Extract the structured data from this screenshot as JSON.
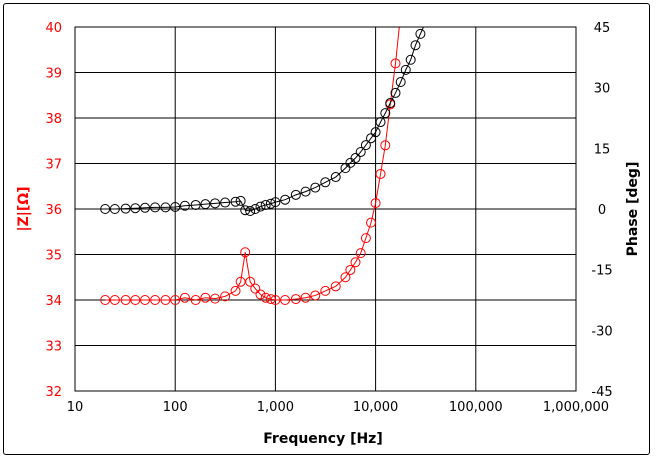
{
  "chart_data": {
    "type": "line",
    "xlabel": "Frequency [Hz]",
    "ylabel_left": "|Z|[Ω]",
    "ylabel_right": "Phase [deg]",
    "x_scale": "log",
    "xlim": [
      10,
      1000000
    ],
    "ylim_left": [
      32,
      40
    ],
    "ylim_right": [
      -45,
      45
    ],
    "grid": true,
    "x_ticks": [
      "10",
      "100",
      "1,000",
      "10,000",
      "100,000",
      "1,000,000"
    ],
    "y_left_ticks": [
      "32",
      "33",
      "34",
      "35",
      "36",
      "37",
      "38",
      "39",
      "40"
    ],
    "y_right_ticks": [
      "-45",
      "-30",
      "-15",
      "0",
      "15",
      "30",
      "45"
    ],
    "colors": {
      "impedance": "#ff0000",
      "phase": "#000000",
      "left_axis_text": "#ff0000"
    },
    "marker": "open-circle",
    "series": [
      {
        "axis": "left",
        "color": "#ff0000",
        "x": [
          20,
          25,
          32,
          40,
          50,
          63,
          80,
          100,
          125,
          160,
          200,
          250,
          315,
          400,
          450,
          500,
          560,
          630,
          710,
          800,
          900,
          1000,
          1250,
          1600,
          2000,
          2500,
          3150,
          4000,
          5000,
          5600,
          6300,
          7100,
          8000,
          9000,
          10000,
          11200,
          12500,
          14000,
          15800,
          18000
        ],
        "y": [
          34.0,
          34.0,
          34.0,
          34.0,
          34.0,
          34.0,
          34.0,
          34.0,
          34.05,
          34.0,
          34.05,
          34.03,
          34.08,
          34.2,
          34.4,
          35.05,
          34.4,
          34.25,
          34.12,
          34.05,
          34.02,
          34.0,
          34.0,
          34.02,
          34.05,
          34.1,
          34.2,
          34.3,
          34.5,
          34.66,
          34.83,
          35.03,
          35.36,
          35.7,
          36.13,
          36.77,
          37.4,
          38.3,
          39.2,
          40.4
        ]
      },
      {
        "axis": "right",
        "color": "#000000",
        "x": [
          20,
          25,
          32,
          40,
          50,
          63,
          80,
          100,
          125,
          160,
          200,
          250,
          315,
          400,
          450,
          500,
          560,
          630,
          710,
          800,
          900,
          1000,
          1250,
          1600,
          2000,
          2500,
          3150,
          4000,
          5000,
          5600,
          6300,
          7100,
          8000,
          9000,
          10000,
          11200,
          12500,
          14000,
          15800,
          17800,
          20000,
          22400,
          25000,
          28000,
          32000
        ],
        "y": [
          0,
          0,
          0.1,
          0.2,
          0.3,
          0.4,
          0.4,
          0.5,
          0.8,
          1.0,
          1.2,
          1.4,
          1.6,
          1.8,
          2.0,
          -0.3,
          -0.5,
          0,
          0.6,
          1.0,
          1.3,
          1.7,
          2.3,
          3.5,
          4.3,
          5.3,
          6.6,
          7.9,
          10.1,
          11.4,
          12.6,
          14.1,
          15.8,
          17.5,
          19,
          21.5,
          23.7,
          26.2,
          28.7,
          31.4,
          34.4,
          36.9,
          40.5,
          43.3,
          46.5
        ]
      }
    ]
  }
}
